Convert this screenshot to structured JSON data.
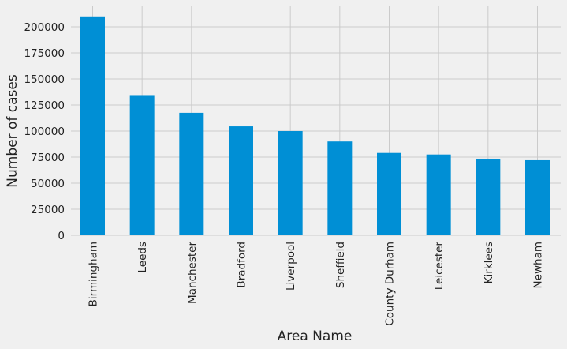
{
  "chart_data": {
    "type": "bar",
    "title": "",
    "xlabel": "Area Name",
    "ylabel": "Number of cases",
    "categories": [
      "Birmingham",
      "Leeds",
      "Manchester",
      "Bradford",
      "Liverpool",
      "Sheffield",
      "County Durham",
      "Leicester",
      "Kirklees",
      "Newham"
    ],
    "values": [
      210000,
      134500,
      117500,
      104500,
      100000,
      90000,
      79000,
      77500,
      73500,
      72000
    ],
    "ylim": [
      0,
      215000
    ],
    "yticks": [
      0,
      25000,
      50000,
      75000,
      100000,
      125000,
      150000,
      175000,
      200000
    ],
    "grid": true,
    "bar_color": "#008fd5",
    "background_color": "#f0f0f0"
  }
}
